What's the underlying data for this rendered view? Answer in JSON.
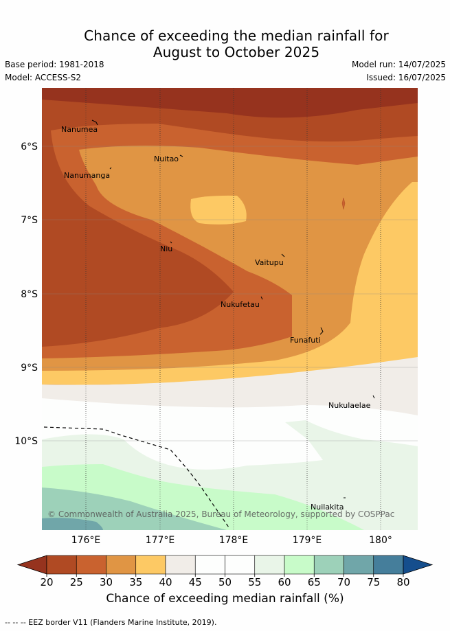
{
  "title_line1": "Chance of exceeding the median rainfall for",
  "title_line2": "August to October 2025",
  "base_period": "Base period: 1981-2018",
  "model": "Model: ACCESS-S2",
  "model_run": "Model run: 14/07/2025",
  "issued": "Issued: 16/07/2025",
  "lat_labels": [
    "6°S",
    "7°S",
    "8°S",
    "9°S",
    "10°S"
  ],
  "lon_labels": [
    "176°E",
    "177°E",
    "178°E",
    "179°E",
    "180°"
  ],
  "places": {
    "nanumea": "Nanumea",
    "nuitao": "Nuitao",
    "nanumanga": "Nanumanga",
    "niu": "Niu",
    "vaitupu": "Vaitupu",
    "nukufetau": "Nukufetau",
    "funafuti": "Funafuti",
    "nukulaelae": "Nukulaelae",
    "nuilakita": "Nuilakita"
  },
  "copyright": "© Commonwealth of Australia 2025, Bureau of Meteorology, supported by COSPPac",
  "colorbar": {
    "ticks": [
      "20",
      "25",
      "30",
      "35",
      "40",
      "45",
      "50",
      "55",
      "60",
      "65",
      "70",
      "75",
      "80"
    ],
    "colors": [
      "#b04a23",
      "#c9622f",
      "#e09544",
      "#fdc964",
      "#f1ede8",
      "#fdfefd",
      "#fdfefd",
      "#e9f5e8",
      "#c8fbc9",
      "#9dd1b9",
      "#70a6a9",
      "#457e9b"
    ],
    "under_color": "#96331e",
    "over_color": "#154e8d",
    "label": "Chance of exceeding median rainfall (%)"
  },
  "footnote": "-- -- -- EEZ border V11 (Flanders Marine Institute, 2019)."
}
